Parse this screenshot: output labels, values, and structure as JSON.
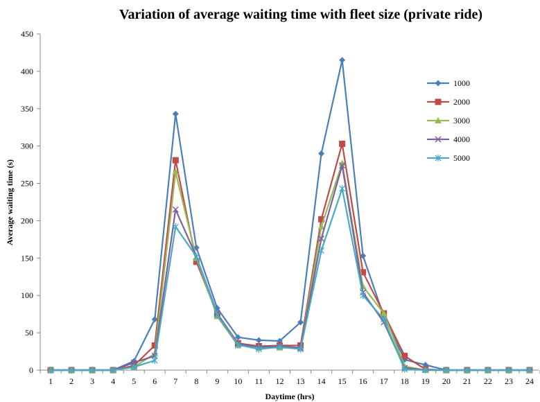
{
  "chart_data": {
    "type": "line",
    "title": "Variation of average waiting time with fleet size (private ride)",
    "xlabel": "Daytime (hrs)",
    "ylabel": "Average waiting time (s)",
    "ylim": [
      0,
      450
    ],
    "yticks": [
      0,
      50,
      100,
      150,
      200,
      250,
      300,
      350,
      400,
      450
    ],
    "x": [
      1,
      2,
      3,
      4,
      5,
      6,
      7,
      8,
      9,
      10,
      11,
      12,
      13,
      14,
      15,
      16,
      17,
      18,
      19,
      20,
      21,
      22,
      23,
      24
    ],
    "grid": false,
    "legend_position": "right",
    "series": [
      {
        "name": "1000",
        "color": "#4a7ebb",
        "marker": "diamond",
        "values": [
          0,
          0,
          0,
          0,
          12,
          68,
          343,
          164,
          83,
          44,
          40,
          39,
          64,
          290,
          415,
          153,
          72,
          14,
          7,
          0,
          0,
          0,
          0,
          0
        ]
      },
      {
        "name": "2000",
        "color": "#be4b48",
        "marker": "square",
        "values": [
          0,
          0,
          0,
          0,
          6,
          33,
          281,
          145,
          75,
          36,
          32,
          33,
          33,
          202,
          303,
          131,
          76,
          19,
          1,
          0,
          0,
          0,
          0,
          0
        ]
      },
      {
        "name": "3000",
        "color": "#98b954",
        "marker": "triangle",
        "values": [
          0,
          0,
          0,
          0,
          4,
          22,
          265,
          150,
          72,
          33,
          30,
          30,
          29,
          192,
          277,
          112,
          76,
          5,
          0,
          0,
          0,
          0,
          0,
          0
        ]
      },
      {
        "name": "4000",
        "color": "#7d60a0",
        "marker": "x",
        "values": [
          0,
          0,
          0,
          0,
          10,
          19,
          215,
          152,
          76,
          35,
          31,
          32,
          30,
          176,
          274,
          104,
          64,
          3,
          0,
          0,
          0,
          0,
          0,
          0
        ]
      },
      {
        "name": "5000",
        "color": "#46aac5",
        "marker": "star",
        "values": [
          0,
          0,
          0,
          0,
          4,
          13,
          192,
          152,
          74,
          34,
          28,
          31,
          28,
          160,
          243,
          100,
          68,
          1,
          0,
          0,
          0,
          0,
          0,
          0
        ]
      }
    ]
  }
}
